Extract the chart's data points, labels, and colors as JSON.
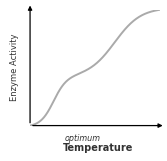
{
  "title": "",
  "xlabel": "Temperature",
  "ylabel": "Enzyme Activity",
  "optimum_label": "optimum",
  "curve_color": "#aaaaaa",
  "background_color": "#ffffff",
  "text_color": "#333333",
  "figsize": [
    1.67,
    1.61
  ],
  "dpi": 100,
  "curve_lw": 1.4,
  "axis_lw": 0.9,
  "arrow_size": 6,
  "ylabel_fontsize": 6.0,
  "xlabel_fontsize": 7.0,
  "optimum_fontsize": 5.8
}
